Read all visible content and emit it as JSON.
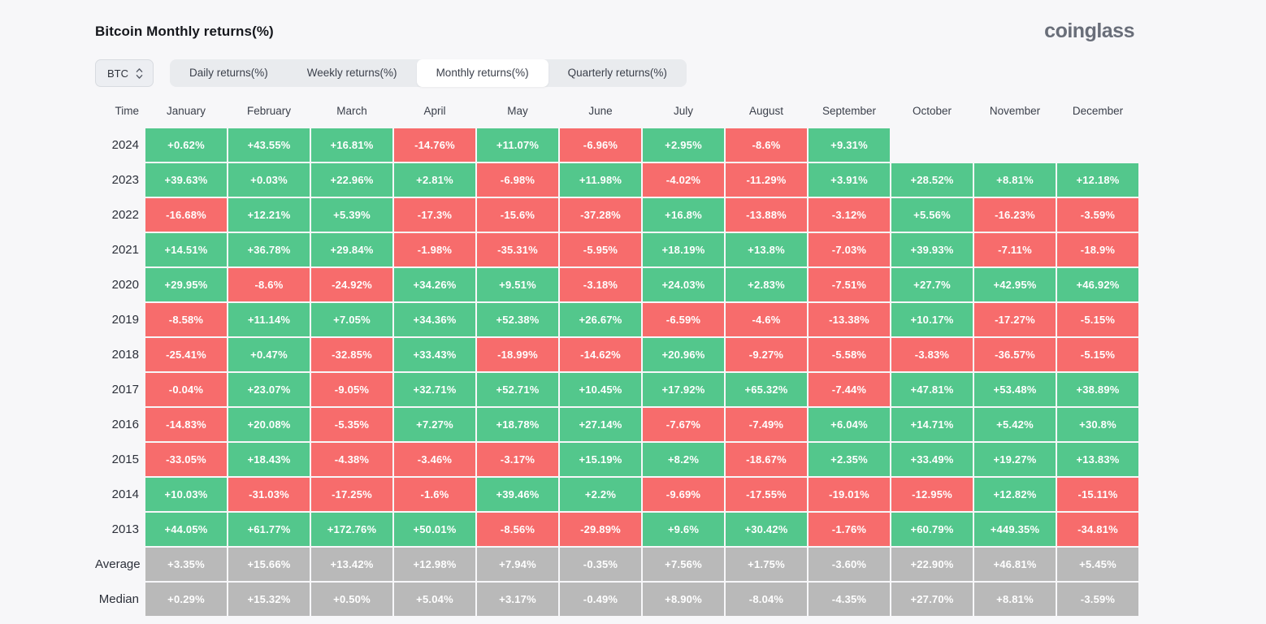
{
  "page": {
    "title": "Bitcoin Monthly returns(%)",
    "brand": "coinglass"
  },
  "controls": {
    "symbol": "BTC",
    "tabs": [
      {
        "label": "Daily returns(%)",
        "active": false
      },
      {
        "label": "Weekly returns(%)",
        "active": false
      },
      {
        "label": "Monthly returns(%)",
        "active": true
      },
      {
        "label": "Quarterly returns(%)",
        "active": false
      }
    ]
  },
  "colors": {
    "positive": "#53c78c",
    "negative": "#f76c6c",
    "neutral": "#b9b9b9"
  },
  "table": {
    "time_header": "Time",
    "months": [
      "January",
      "February",
      "March",
      "April",
      "May",
      "June",
      "July",
      "August",
      "September",
      "October",
      "November",
      "December"
    ],
    "rows": [
      {
        "label": "2024",
        "neutral": false,
        "values": [
          "+0.62%",
          "+43.55%",
          "+16.81%",
          "-14.76%",
          "+11.07%",
          "-6.96%",
          "+2.95%",
          "-8.6%",
          "+9.31%",
          "",
          "",
          ""
        ]
      },
      {
        "label": "2023",
        "neutral": false,
        "values": [
          "+39.63%",
          "+0.03%",
          "+22.96%",
          "+2.81%",
          "-6.98%",
          "+11.98%",
          "-4.02%",
          "-11.29%",
          "+3.91%",
          "+28.52%",
          "+8.81%",
          "+12.18%"
        ]
      },
      {
        "label": "2022",
        "neutral": false,
        "values": [
          "-16.68%",
          "+12.21%",
          "+5.39%",
          "-17.3%",
          "-15.6%",
          "-37.28%",
          "+16.8%",
          "-13.88%",
          "-3.12%",
          "+5.56%",
          "-16.23%",
          "-3.59%"
        ]
      },
      {
        "label": "2021",
        "neutral": false,
        "values": [
          "+14.51%",
          "+36.78%",
          "+29.84%",
          "-1.98%",
          "-35.31%",
          "-5.95%",
          "+18.19%",
          "+13.8%",
          "-7.03%",
          "+39.93%",
          "-7.11%",
          "-18.9%"
        ]
      },
      {
        "label": "2020",
        "neutral": false,
        "values": [
          "+29.95%",
          "-8.6%",
          "-24.92%",
          "+34.26%",
          "+9.51%",
          "-3.18%",
          "+24.03%",
          "+2.83%",
          "-7.51%",
          "+27.7%",
          "+42.95%",
          "+46.92%"
        ]
      },
      {
        "label": "2019",
        "neutral": false,
        "values": [
          "-8.58%",
          "+11.14%",
          "+7.05%",
          "+34.36%",
          "+52.38%",
          "+26.67%",
          "-6.59%",
          "-4.6%",
          "-13.38%",
          "+10.17%",
          "-17.27%",
          "-5.15%"
        ]
      },
      {
        "label": "2018",
        "neutral": false,
        "values": [
          "-25.41%",
          "+0.47%",
          "-32.85%",
          "+33.43%",
          "-18.99%",
          "-14.62%",
          "+20.96%",
          "-9.27%",
          "-5.58%",
          "-3.83%",
          "-36.57%",
          "-5.15%"
        ]
      },
      {
        "label": "2017",
        "neutral": false,
        "values": [
          "-0.04%",
          "+23.07%",
          "-9.05%",
          "+32.71%",
          "+52.71%",
          "+10.45%",
          "+17.92%",
          "+65.32%",
          "-7.44%",
          "+47.81%",
          "+53.48%",
          "+38.89%"
        ]
      },
      {
        "label": "2016",
        "neutral": false,
        "values": [
          "-14.83%",
          "+20.08%",
          "-5.35%",
          "+7.27%",
          "+18.78%",
          "+27.14%",
          "-7.67%",
          "-7.49%",
          "+6.04%",
          "+14.71%",
          "+5.42%",
          "+30.8%"
        ]
      },
      {
        "label": "2015",
        "neutral": false,
        "values": [
          "-33.05%",
          "+18.43%",
          "-4.38%",
          "-3.46%",
          "-3.17%",
          "+15.19%",
          "+8.2%",
          "-18.67%",
          "+2.35%",
          "+33.49%",
          "+19.27%",
          "+13.83%"
        ]
      },
      {
        "label": "2014",
        "neutral": false,
        "values": [
          "+10.03%",
          "-31.03%",
          "-17.25%",
          "-1.6%",
          "+39.46%",
          "+2.2%",
          "-9.69%",
          "-17.55%",
          "-19.01%",
          "-12.95%",
          "+12.82%",
          "-15.11%"
        ]
      },
      {
        "label": "2013",
        "neutral": false,
        "values": [
          "+44.05%",
          "+61.77%",
          "+172.76%",
          "+50.01%",
          "-8.56%",
          "-29.89%",
          "+9.6%",
          "+30.42%",
          "-1.76%",
          "+60.79%",
          "+449.35%",
          "-34.81%"
        ]
      },
      {
        "label": "Average",
        "neutral": true,
        "values": [
          "+3.35%",
          "+15.66%",
          "+13.42%",
          "+12.98%",
          "+7.94%",
          "-0.35%",
          "+7.56%",
          "+1.75%",
          "-3.60%",
          "+22.90%",
          "+46.81%",
          "+5.45%"
        ]
      },
      {
        "label": "Median",
        "neutral": true,
        "values": [
          "+0.29%",
          "+15.32%",
          "+0.50%",
          "+5.04%",
          "+3.17%",
          "-0.49%",
          "+8.90%",
          "-8.04%",
          "-4.35%",
          "+27.70%",
          "+8.81%",
          "-3.59%"
        ]
      }
    ]
  }
}
